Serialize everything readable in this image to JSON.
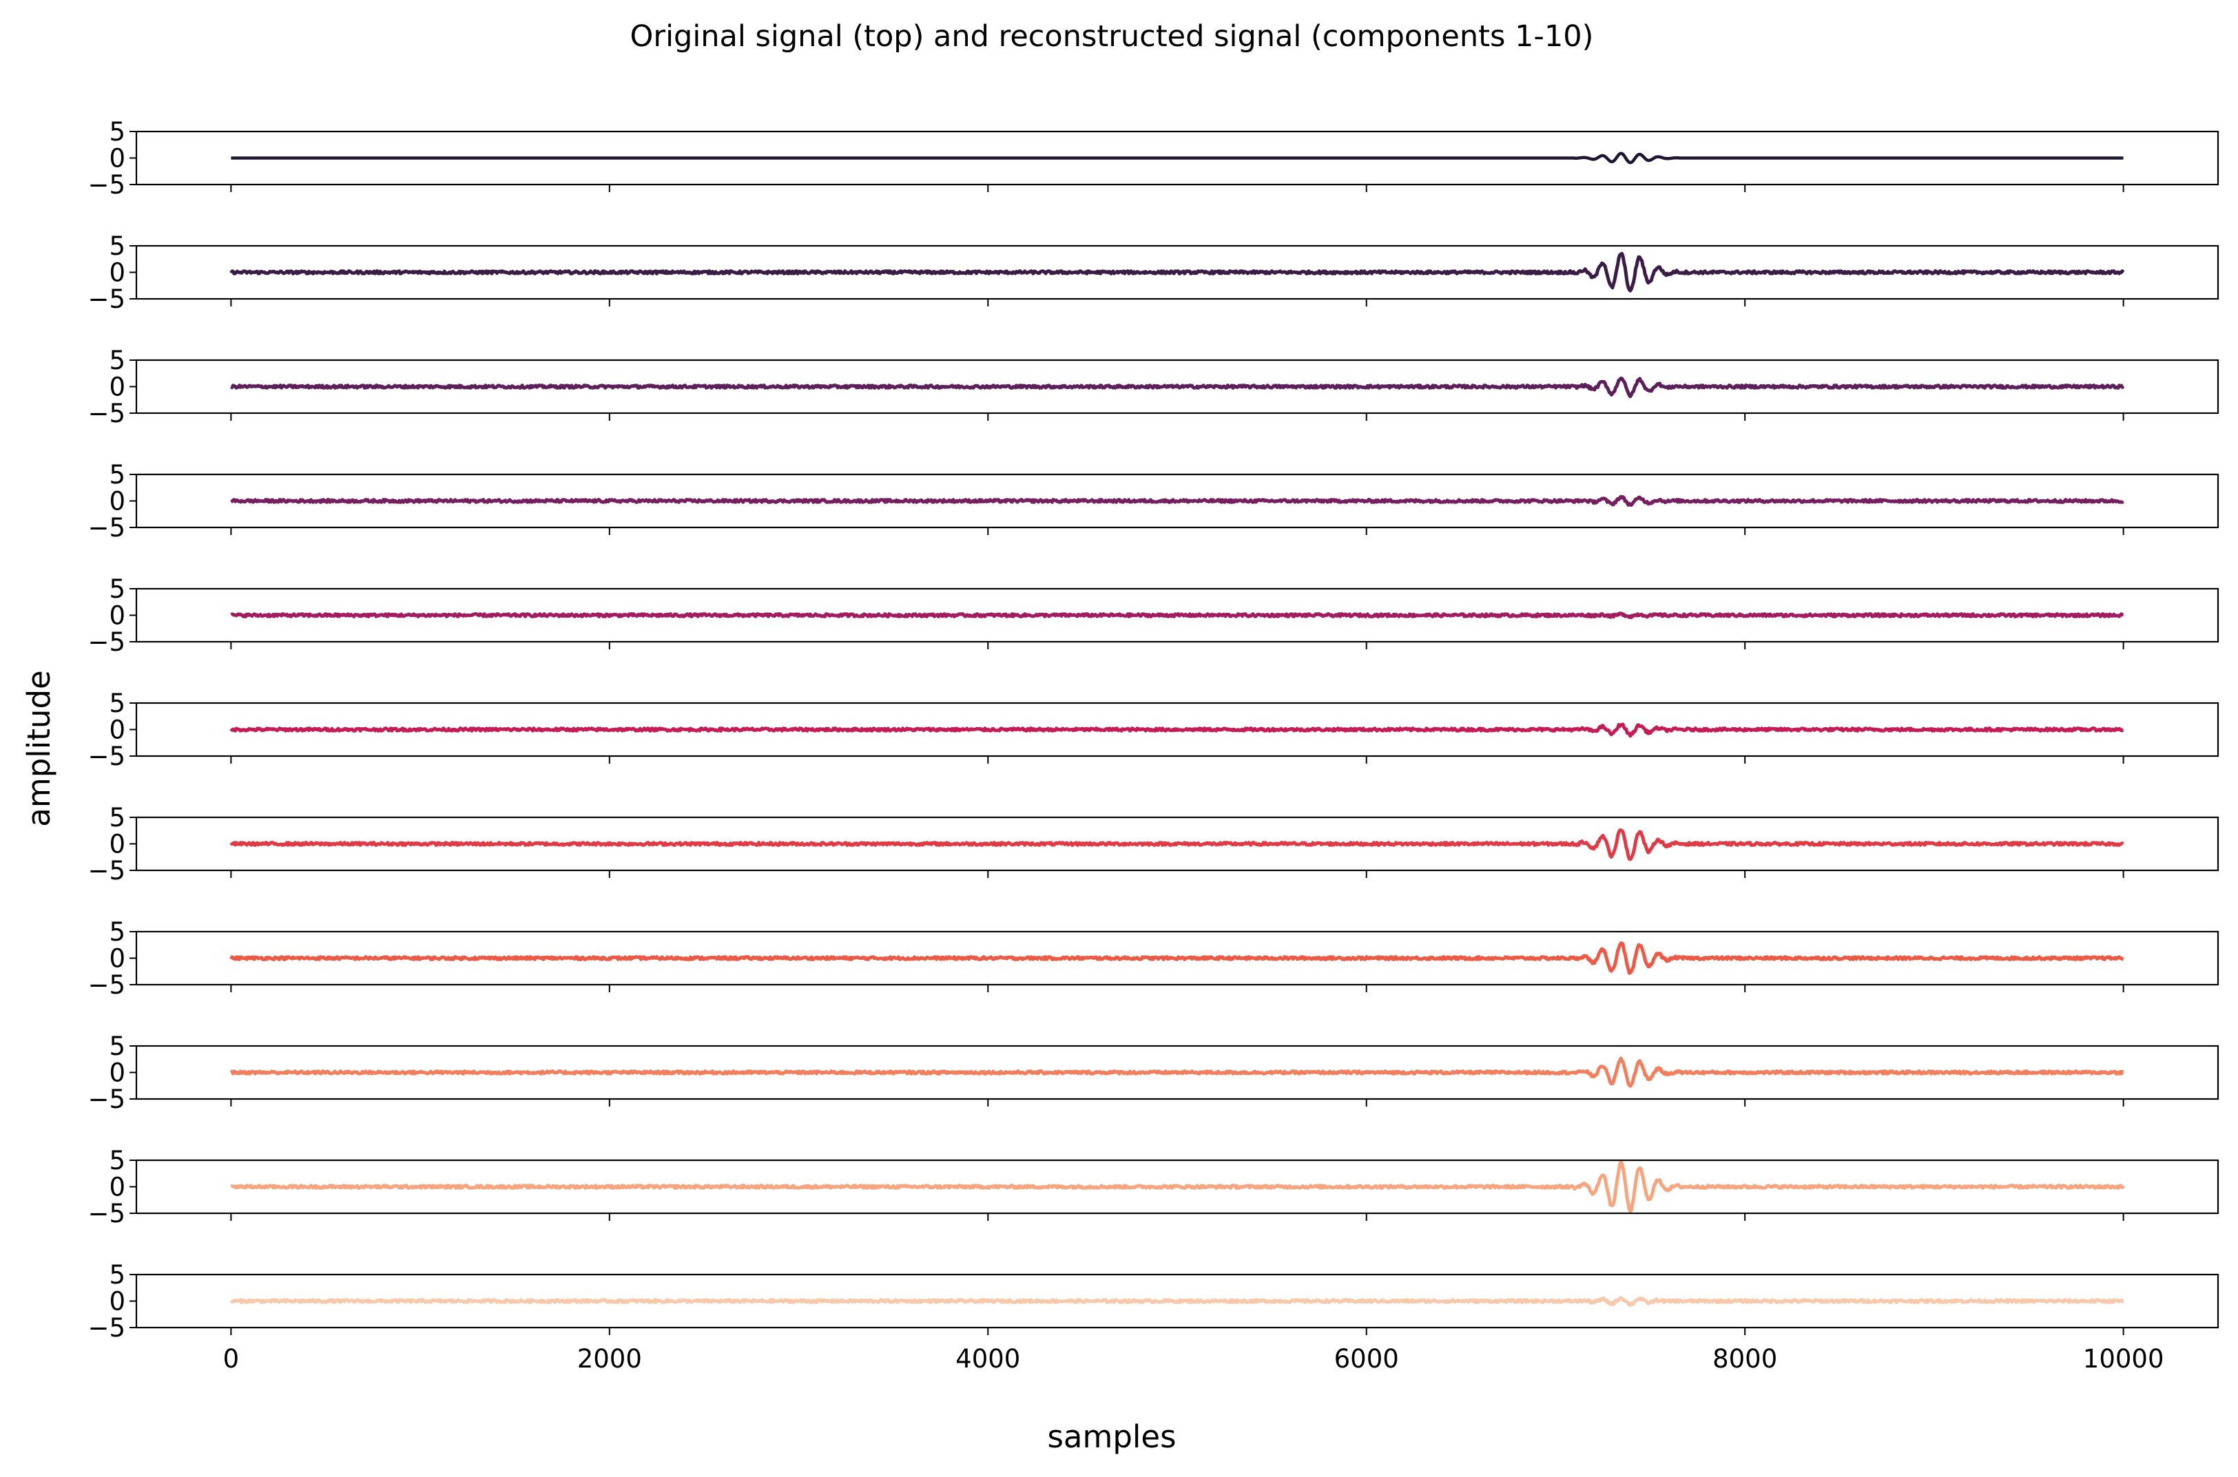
{
  "chart_data": {
    "type": "line",
    "title": "Original signal (top) and reconstructed signal (components 1-10)",
    "xlabel": "samples",
    "ylabel": "amplitude",
    "xlim": [
      -500,
      10500
    ],
    "ylim": [
      -5,
      5
    ],
    "xticks": [
      0,
      2000,
      4000,
      6000,
      8000,
      10000
    ],
    "yticks": [
      5,
      0,
      -5
    ],
    "grid": false,
    "sample_count": 10000,
    "burst_window": [
      7100,
      7650
    ],
    "burst_center": 7370,
    "series": [
      {
        "color": "#1f1533",
        "burst_amplitude": 0.9,
        "noise_amplitude": 0.0
      },
      {
        "color": "#3a1c46",
        "burst_amplitude": 3.6,
        "noise_amplitude": 0.25
      },
      {
        "color": "#5c1f5b",
        "burst_amplitude": 1.7,
        "noise_amplitude": 0.25
      },
      {
        "color": "#751f61",
        "burst_amplitude": 0.7,
        "noise_amplitude": 0.25
      },
      {
        "color": "#a21c5f",
        "burst_amplitude": 0.2,
        "noise_amplitude": 0.25
      },
      {
        "color": "#c51c55",
        "burst_amplitude": 1.0,
        "noise_amplitude": 0.25
      },
      {
        "color": "#e03a47",
        "burst_amplitude": 2.9,
        "noise_amplitude": 0.25
      },
      {
        "color": "#ec5a45",
        "burst_amplitude": 3.0,
        "noise_amplitude": 0.25
      },
      {
        "color": "#f17f5d",
        "burst_amplitude": 2.5,
        "noise_amplitude": 0.25
      },
      {
        "color": "#f7a57e",
        "burst_amplitude": 4.6,
        "noise_amplitude": 0.25
      },
      {
        "color": "#f7c8aa",
        "burst_amplitude": 0.6,
        "noise_amplitude": 0.25
      }
    ]
  }
}
